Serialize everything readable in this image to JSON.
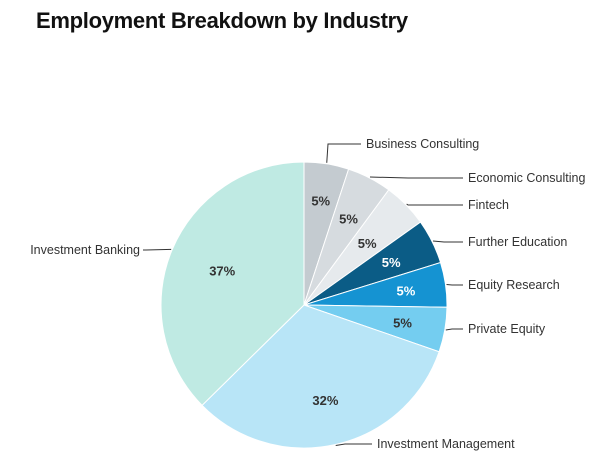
{
  "title": "Employment Breakdown by Industry",
  "chart_data": {
    "type": "pie",
    "title": "Employment Breakdown by Industry",
    "start_angle_deg": 0,
    "direction": "clockwise",
    "slices": [
      {
        "label": "Business Consulting",
        "value": 5,
        "display": "5%",
        "color": "#c4cbd0",
        "text_color": "#333333"
      },
      {
        "label": "Economic Consulting",
        "value": 5,
        "display": "5%",
        "color": "#d6dbdf",
        "text_color": "#333333"
      },
      {
        "label": "Fintech",
        "value": 5,
        "display": "5%",
        "color": "#e6eaed",
        "text_color": "#333333"
      },
      {
        "label": "Further Education",
        "value": 5,
        "display": "5%",
        "color": "#0b5c86",
        "text_color": "#ffffff"
      },
      {
        "label": "Equity Research",
        "value": 5,
        "display": "5%",
        "color": "#1593d2",
        "text_color": "#ffffff"
      },
      {
        "label": "Private Equity",
        "value": 5,
        "display": "5%",
        "color": "#74cdf0",
        "text_color": "#333333"
      },
      {
        "label": "Investment Management",
        "value": 32,
        "display": "32%",
        "color": "#b8e5f7",
        "text_color": "#333333"
      },
      {
        "label": "Investment Banking",
        "value": 37,
        "display": "37%",
        "color": "#bfeae3",
        "text_color": "#333333"
      }
    ],
    "legend": "callout labels"
  }
}
